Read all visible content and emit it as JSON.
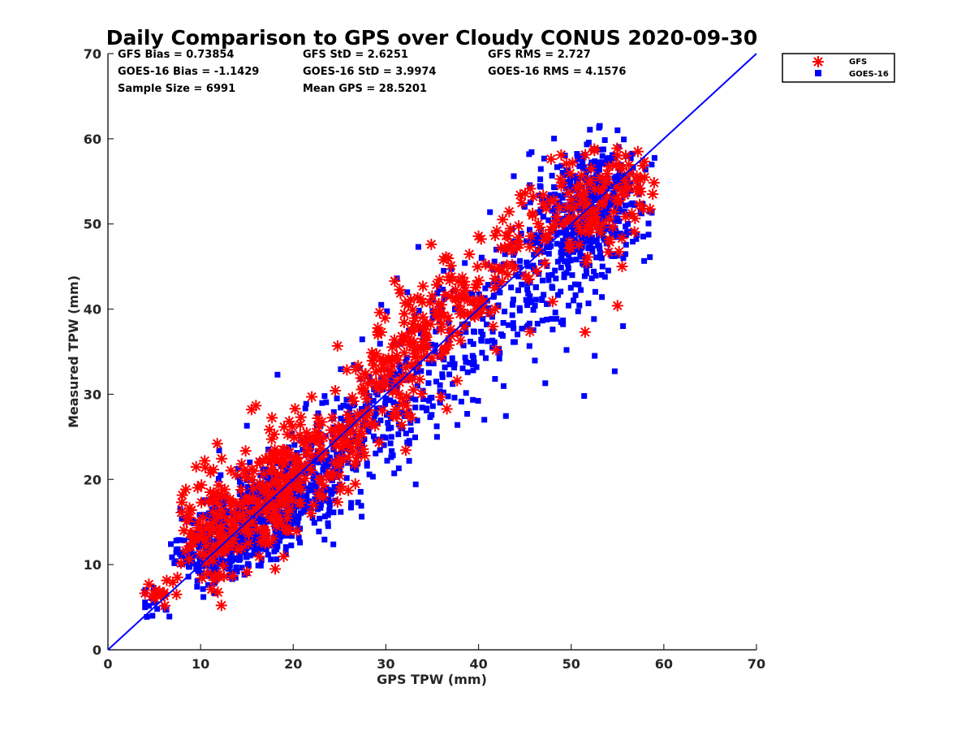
{
  "chart_data": {
    "type": "scatter",
    "title": "Daily Comparison to GPS over Cloudy CONUS 2020-09-30",
    "xlabel": "GPS TPW (mm)",
    "ylabel": "Measured TPW (mm)",
    "xlim": [
      0,
      70
    ],
    "ylim": [
      0,
      70
    ],
    "xticks": [
      "0",
      "10",
      "20",
      "30",
      "40",
      "50",
      "60",
      "70"
    ],
    "yticks": [
      "0",
      "10",
      "20",
      "30",
      "40",
      "50",
      "60",
      "70"
    ],
    "grid": false,
    "legend_position": "outside-top-right",
    "stats": [
      [
        "GFS Bias = 0.73854",
        "GFS StD = 2.6251",
        "GFS RMS = 2.727"
      ],
      [
        "GOES-16 Bias = -1.1429",
        "GOES-16 StD = 3.9974",
        "GOES-16 RMS = 4.1576"
      ],
      [
        "Sample Size = 6991",
        "Mean GPS = 28.5201",
        ""
      ]
    ],
    "reference_line": {
      "description": "1:1 line",
      "x": [
        0,
        70
      ],
      "y": [
        0,
        70
      ],
      "color": "#0000ff"
    },
    "series": [
      {
        "name": "GFS",
        "marker": "asterisk",
        "color": "#ff0000",
        "clusters": [
          {
            "cx": 5.5,
            "cy": 6.5,
            "sx": 1.0,
            "sy": 1.0,
            "n": 14
          },
          {
            "cx": 10.5,
            "cy": 13.0,
            "sx": 1.8,
            "sy": 3.0,
            "n": 70
          },
          {
            "cx": 15.0,
            "cy": 16.5,
            "sx": 2.8,
            "sy": 3.0,
            "n": 120
          },
          {
            "cx": 20.0,
            "cy": 21.0,
            "sx": 2.5,
            "sy": 2.8,
            "n": 110
          },
          {
            "cx": 24.5,
            "cy": 25.0,
            "sx": 2.2,
            "sy": 2.5,
            "n": 60
          },
          {
            "cx": 29.5,
            "cy": 30.5,
            "sx": 2.2,
            "sy": 2.5,
            "n": 70
          },
          {
            "cx": 33.5,
            "cy": 37.5,
            "sx": 2.2,
            "sy": 2.8,
            "n": 80
          },
          {
            "cx": 38.5,
            "cy": 41.0,
            "sx": 2.2,
            "sy": 2.5,
            "n": 60
          },
          {
            "cx": 43.5,
            "cy": 46.5,
            "sx": 2.0,
            "sy": 3.0,
            "n": 45
          },
          {
            "cx": 51.5,
            "cy": 52.0,
            "sx": 2.8,
            "sy": 3.0,
            "n": 110
          },
          {
            "cx": 57.0,
            "cy": 55.5,
            "sx": 1.3,
            "sy": 2.0,
            "n": 20
          }
        ],
        "points": [
          [
            11.8,
            24.2
          ],
          [
            10.5,
            21.4
          ],
          [
            15.5,
            28.2
          ],
          [
            20.2,
            28.3
          ],
          [
            22.0,
            29.7
          ],
          [
            34.9,
            47.6
          ],
          [
            44.5,
            53.4
          ],
          [
            45.9,
            53.2
          ],
          [
            57.2,
            58.5
          ],
          [
            52.5,
            58.8
          ],
          [
            58.8,
            53.5
          ],
          [
            51.5,
            37.3
          ],
          [
            55.0,
            40.4
          ],
          [
            55.5,
            45.0
          ],
          [
            41.9,
            35.2
          ],
          [
            37.7,
            31.6
          ],
          [
            9.0,
            16.4
          ],
          [
            8.2,
            14.0
          ],
          [
            7.5,
            8.5
          ],
          [
            7.4,
            6.5
          ]
        ]
      },
      {
        "name": "GOES-16",
        "marker": "square",
        "color": "#0000ff",
        "clusters": [
          {
            "cx": 5.0,
            "cy": 5.5,
            "sx": 0.8,
            "sy": 1.0,
            "n": 15
          },
          {
            "cx": 11.0,
            "cy": 12.0,
            "sx": 1.8,
            "sy": 2.2,
            "n": 200
          },
          {
            "cx": 15.0,
            "cy": 14.5,
            "sx": 2.5,
            "sy": 2.5,
            "n": 350
          },
          {
            "cx": 19.5,
            "cy": 18.0,
            "sx": 2.5,
            "sy": 2.5,
            "n": 250
          },
          {
            "cx": 24.0,
            "cy": 22.0,
            "sx": 2.5,
            "sy": 3.0,
            "n": 120
          },
          {
            "cx": 29.0,
            "cy": 27.0,
            "sx": 2.5,
            "sy": 3.0,
            "n": 110
          },
          {
            "cx": 34.0,
            "cy": 32.0,
            "sx": 2.8,
            "sy": 3.5,
            "n": 110
          },
          {
            "cx": 39.5,
            "cy": 38.0,
            "sx": 2.5,
            "sy": 3.5,
            "n": 100
          },
          {
            "cx": 45.5,
            "cy": 42.5,
            "sx": 2.5,
            "sy": 3.5,
            "n": 90
          },
          {
            "cx": 50.0,
            "cy": 49.5,
            "sx": 2.8,
            "sy": 4.0,
            "n": 260
          },
          {
            "cx": 53.5,
            "cy": 52.5,
            "sx": 2.2,
            "sy": 3.5,
            "n": 260
          }
        ],
        "points": [
          [
            18.3,
            32.3
          ],
          [
            15.0,
            26.3
          ],
          [
            12.0,
            23.4
          ],
          [
            33.5,
            47.3
          ],
          [
            31.2,
            43.6
          ],
          [
            29.5,
            40.5
          ],
          [
            47.2,
            31.3
          ],
          [
            51.4,
            29.8
          ],
          [
            54.7,
            32.7
          ],
          [
            53.0,
            61.3
          ],
          [
            55.0,
            61.0
          ],
          [
            49.5,
            35.2
          ],
          [
            55.6,
            38.0
          ],
          [
            48.0,
            37.6
          ],
          [
            58.5,
            46.1
          ],
          [
            10.3,
            6.2
          ],
          [
            4.8,
            4.0
          ]
        ]
      }
    ]
  },
  "legend": {
    "items": [
      {
        "label": "GFS",
        "marker": "asterisk",
        "color": "#ff0000"
      },
      {
        "label": "GOES-16",
        "marker": "square",
        "color": "#0000ff"
      }
    ]
  }
}
